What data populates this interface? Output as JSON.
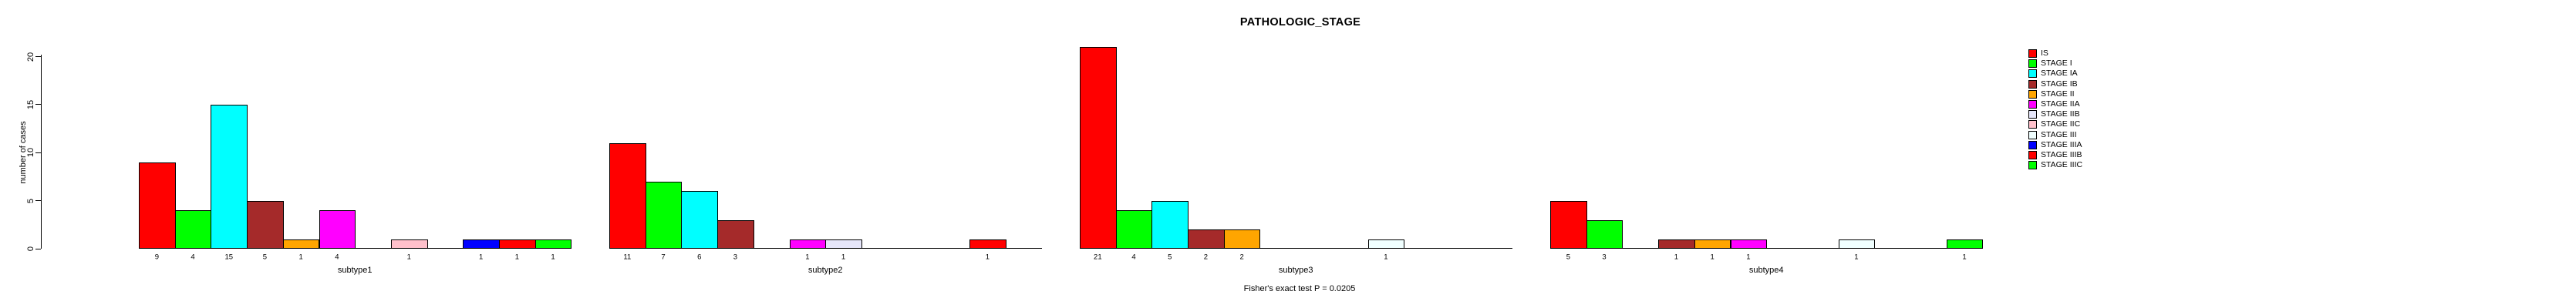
{
  "title": "PATHOLOGIC_STAGE",
  "caption": "Fisher's exact test P = 0.0205",
  "chart_data": {
    "type": "bar",
    "title": "PATHOLOGIC_STAGE",
    "xlabel": "",
    "ylabel": "number of cases",
    "ylim": [
      0,
      20
    ],
    "yticks": [
      0,
      5,
      10,
      15,
      20
    ],
    "grid": false,
    "legend_position": "right",
    "bar_value_labels": true,
    "categories": [
      "subtype1",
      "subtype2",
      "subtype3",
      "subtype4"
    ],
    "series": [
      {
        "name": "IS",
        "color": "#FF0000",
        "values": [
          9,
          11,
          21,
          5
        ]
      },
      {
        "name": "STAGE I",
        "color": "#00FF00",
        "values": [
          4,
          7,
          4,
          3
        ]
      },
      {
        "name": "STAGE IA",
        "color": "#00FFFF",
        "values": [
          15,
          6,
          5,
          0
        ]
      },
      {
        "name": "STAGE IB",
        "color": "#A52A2A",
        "values": [
          5,
          3,
          2,
          1
        ]
      },
      {
        "name": "STAGE II",
        "color": "#FFA500",
        "values": [
          1,
          0,
          2,
          1
        ]
      },
      {
        "name": "STAGE IIA",
        "color": "#FF00FF",
        "values": [
          4,
          1,
          0,
          1
        ]
      },
      {
        "name": "STAGE IIB",
        "color": "#E6E6FA",
        "values": [
          0,
          1,
          0,
          0
        ]
      },
      {
        "name": "STAGE IIC",
        "color": "#FFC0CB",
        "values": [
          1,
          0,
          0,
          0
        ]
      },
      {
        "name": "STAGE III",
        "color": "#F0FFFF",
        "values": [
          0,
          0,
          1,
          1
        ]
      },
      {
        "name": "STAGE IIIA",
        "color": "#0000FF",
        "values": [
          1,
          0,
          0,
          0
        ]
      },
      {
        "name": "STAGE IIIB",
        "color": "#FF0000",
        "values": [
          1,
          1,
          0,
          0
        ]
      },
      {
        "name": "STAGE IIIC",
        "color": "#00FF00",
        "values": [
          1,
          0,
          0,
          1
        ]
      }
    ]
  }
}
